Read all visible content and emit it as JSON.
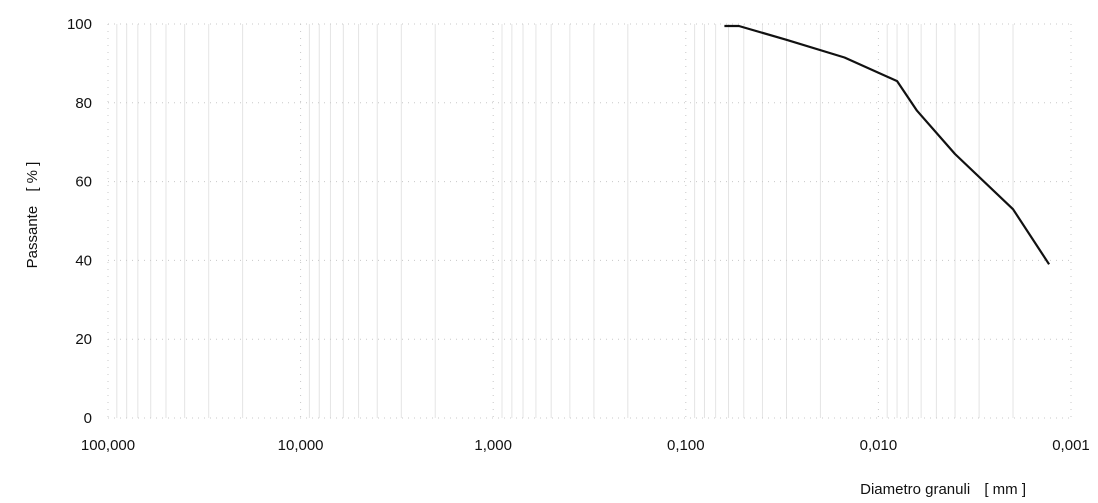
{
  "chart_data": {
    "type": "line",
    "title": "",
    "xlabel": "Diametro granuli",
    "xunit": "[ mm ]",
    "ylabel": "Passante",
    "yunit": "[ % ]",
    "xscale": "log",
    "xaxis_reversed": true,
    "xlim": [
      100,
      0.001
    ],
    "ylim": [
      0,
      100
    ],
    "grid": true,
    "legend": "none",
    "x_ticks": [
      {
        "value": 100,
        "label": "100,000"
      },
      {
        "value": 10,
        "label": "10,000"
      },
      {
        "value": 1,
        "label": "1,000"
      },
      {
        "value": 0.1,
        "label": "0,100"
      },
      {
        "value": 0.01,
        "label": "0,010"
      },
      {
        "value": 0.001,
        "label": "0,001"
      }
    ],
    "y_ticks": [
      {
        "value": 0,
        "label": "0"
      },
      {
        "value": 20,
        "label": "20"
      },
      {
        "value": 40,
        "label": "40"
      },
      {
        "value": 60,
        "label": "60"
      },
      {
        "value": 80,
        "label": "80"
      },
      {
        "value": 100,
        "label": "100"
      }
    ],
    "series": [
      {
        "x": [
          0.063,
          0.053,
          0.03,
          0.015,
          0.008,
          0.0063,
          0.004,
          0.002,
          0.0013
        ],
        "y": [
          99.5,
          99.5,
          96.0,
          91.5,
          85.5,
          78.0,
          67.0,
          53.0,
          39.0
        ]
      }
    ]
  }
}
